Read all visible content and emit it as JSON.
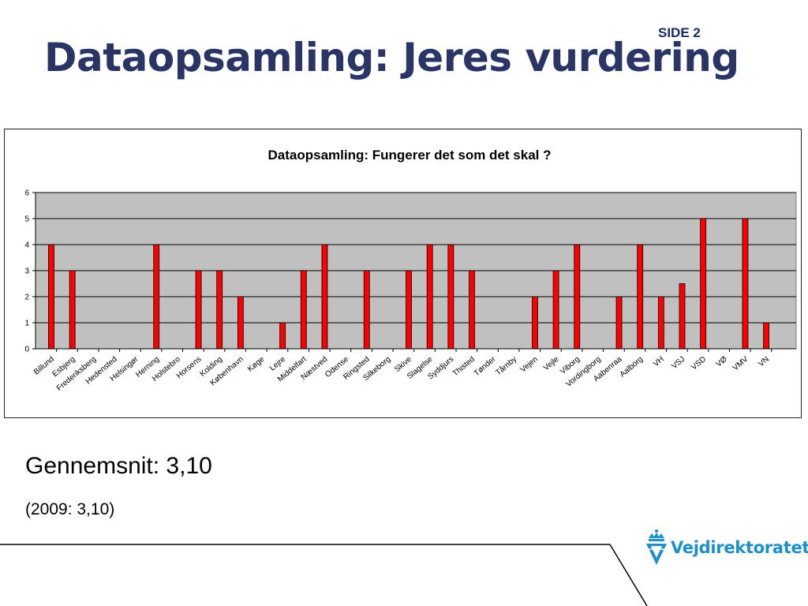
{
  "page_label": "SIDE 2",
  "slide_title": "Dataopsamling: Jeres vurdering",
  "average_text": "Gennemsnit: 3,10",
  "previous_text": "(2009: 3,10)",
  "logo": {
    "name": "Vejdirektoratet",
    "icon": "crown-v-icon",
    "color": "#1e90c8"
  },
  "colors": {
    "title": "#2a3566",
    "bar": "#ff0000",
    "plot_bg": "#c0c0c0"
  },
  "chart_data": {
    "type": "bar",
    "title": "Dataopsamling: Fungerer det som det skal ?",
    "xlabel": "",
    "ylabel": "",
    "ylim": [
      0,
      6
    ],
    "yticks": [
      0,
      1,
      2,
      3,
      4,
      5,
      6
    ],
    "grid": true,
    "legend": "none",
    "categories": [
      "Billund",
      "Esbjerg",
      "Frederiksberg",
      "Hedensted",
      "Helsingør",
      "Herning",
      "Holstebro",
      "Horsens",
      "Kolding",
      "København",
      "Køge",
      "Lejre",
      "Middelfart",
      "Næstved",
      "Odense",
      "Ringsted",
      "Silkeborg",
      "Skive",
      "Slagelse",
      "Syddjurs",
      "Thisted",
      "Tønder",
      "Tårnby",
      "Vejen",
      "Vejle",
      "Viborg",
      "Vordingborg",
      "Aabenraa",
      "Aalborg",
      "VH",
      "VSJ",
      "VSD",
      "VØ",
      "VMV",
      "VN"
    ],
    "values": [
      4,
      3,
      null,
      null,
      null,
      4,
      null,
      3,
      3,
      2,
      null,
      1,
      3,
      4,
      null,
      3,
      null,
      3,
      4,
      4,
      3,
      null,
      null,
      2,
      3,
      4,
      null,
      2,
      4,
      2,
      2.5,
      5,
      null,
      5,
      1
    ]
  }
}
